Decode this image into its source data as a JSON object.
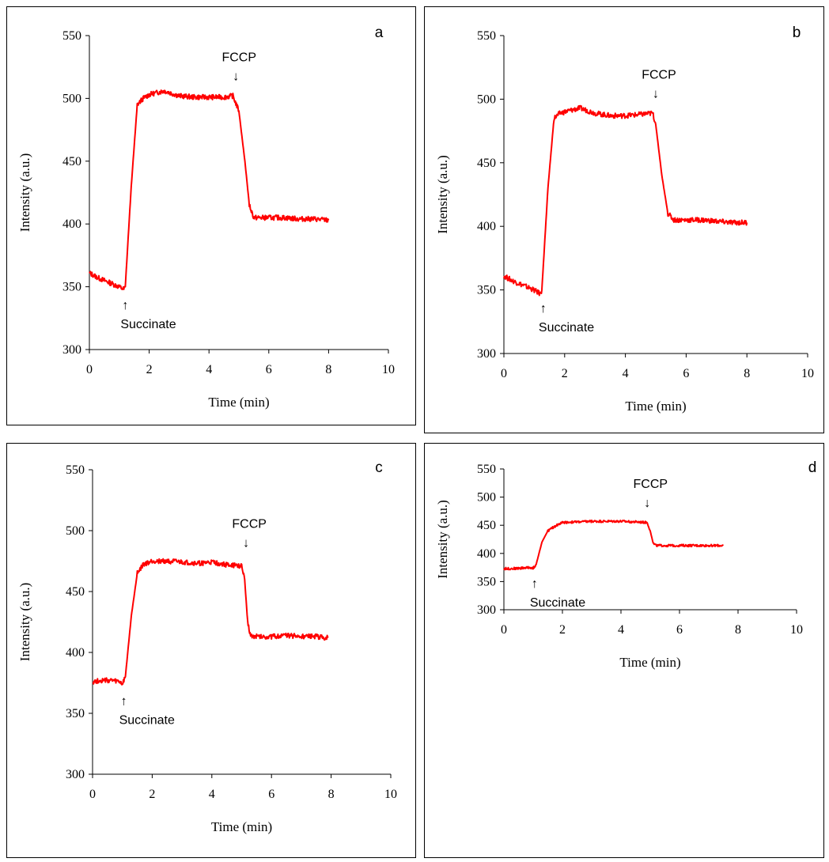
{
  "chart_data": [
    {
      "type": "line",
      "panel_label": "a",
      "xlabel": "Time (min)",
      "ylabel": "Intensity (a.u.)",
      "xlim": [
        0,
        10
      ],
      "ylim": [
        300,
        550
      ],
      "xticks": [
        0,
        2,
        4,
        6,
        8,
        10
      ],
      "yticks": [
        300,
        350,
        400,
        450,
        500,
        550
      ],
      "series_color": "#ff0000",
      "grid": false,
      "series": [
        {
          "x": [
            0,
            0.3,
            0.6,
            0.9,
            1.15,
            1.2,
            1.4,
            1.6,
            1.8,
            2.0,
            2.5,
            3.0,
            3.5,
            4.0,
            4.5,
            4.8,
            5.0,
            5.2,
            5.35,
            5.5,
            6.0,
            6.5,
            7.0,
            7.5,
            8.0
          ],
          "y": [
            361,
            357,
            354,
            351,
            348,
            350,
            430,
            495,
            500,
            503,
            506,
            502,
            501,
            501,
            501,
            502,
            490,
            450,
            415,
            405,
            405,
            405,
            404,
            404,
            403
          ]
        }
      ],
      "annotations": [
        {
          "text": "Succinate",
          "arrow": "↑",
          "x": 1.2,
          "y": 346,
          "direction": "up"
        },
        {
          "text": "FCCP",
          "arrow": "↓",
          "x": 4.9,
          "y": 503,
          "direction": "down"
        }
      ]
    },
    {
      "type": "line",
      "panel_label": "b",
      "xlabel": "Time (min)",
      "ylabel": "Intensity (a.u.)",
      "xlim": [
        0,
        10
      ],
      "ylim": [
        300,
        550
      ],
      "xticks": [
        0,
        2,
        4,
        6,
        8,
        10
      ],
      "yticks": [
        300,
        350,
        400,
        450,
        500,
        550
      ],
      "series_color": "#ff0000",
      "grid": false,
      "series": [
        {
          "x": [
            0,
            0.3,
            0.6,
            0.9,
            1.2,
            1.25,
            1.45,
            1.65,
            1.85,
            2.0,
            2.5,
            3.0,
            3.5,
            4.0,
            4.5,
            4.9,
            5.0,
            5.2,
            5.4,
            5.6,
            6.0,
            6.5,
            7.0,
            7.5,
            8.0
          ],
          "y": [
            361,
            357,
            354,
            351,
            347,
            350,
            430,
            485,
            489,
            490,
            493,
            489,
            487,
            487,
            488,
            489,
            480,
            440,
            410,
            405,
            405,
            405,
            404,
            403,
            403
          ]
        }
      ],
      "annotations": [
        {
          "text": "Succinate",
          "arrow": "↑",
          "x": 1.3,
          "y": 346,
          "direction": "up"
        },
        {
          "text": "FCCP",
          "arrow": "↓",
          "x": 5.0,
          "y": 490,
          "direction": "down"
        }
      ]
    },
    {
      "type": "line",
      "panel_label": "c",
      "xlabel": "Time (min)",
      "ylabel": "Intensity (a.u.)",
      "xlim": [
        0,
        10
      ],
      "ylim": [
        300,
        550
      ],
      "xticks": [
        0,
        2,
        4,
        6,
        8,
        10
      ],
      "yticks": [
        300,
        350,
        400,
        450,
        500,
        550
      ],
      "series_color": "#ff0000",
      "grid": false,
      "series": [
        {
          "x": [
            0,
            0.3,
            0.6,
            0.9,
            1.0,
            1.1,
            1.3,
            1.5,
            1.7,
            2.0,
            2.5,
            3.0,
            3.5,
            4.0,
            4.5,
            5.0,
            5.1,
            5.2,
            5.3,
            5.5,
            6.0,
            6.5,
            7.0,
            7.5,
            7.9
          ],
          "y": [
            376,
            377,
            377,
            376,
            374,
            380,
            430,
            465,
            472,
            475,
            475,
            474,
            473,
            474,
            472,
            471,
            460,
            425,
            414,
            413,
            413,
            414,
            413,
            413,
            412
          ]
        }
      ],
      "annotations": [
        {
          "text": "Succinate",
          "arrow": "↑",
          "x": 1.05,
          "y": 371,
          "direction": "up"
        },
        {
          "text": "FCCP",
          "arrow": "↓",
          "x": 5.15,
          "y": 475,
          "direction": "down"
        }
      ]
    },
    {
      "type": "line",
      "panel_label": "d",
      "xlabel": "Time (min)",
      "ylabel": "Intensity (a.u.)",
      "xlim": [
        0,
        10
      ],
      "ylim": [
        300,
        550
      ],
      "xticks": [
        0,
        2,
        4,
        6,
        8,
        10
      ],
      "yticks": [
        300,
        350,
        400,
        450,
        500,
        550
      ],
      "series_color": "#ff0000",
      "grid": false,
      "series": [
        {
          "x": [
            0,
            0.3,
            0.6,
            0.9,
            1.0,
            1.1,
            1.3,
            1.5,
            1.8,
            2.0,
            2.5,
            3.0,
            3.5,
            4.0,
            4.5,
            4.9,
            5.0,
            5.1,
            5.2,
            5.5,
            6.0,
            6.5,
            7.0,
            7.5
          ],
          "y": [
            373,
            373,
            374,
            375,
            374,
            380,
            420,
            440,
            450,
            455,
            456,
            457,
            457,
            457,
            456,
            455,
            440,
            418,
            414,
            414,
            414,
            414,
            414,
            414
          ]
        }
      ],
      "annotations": [
        {
          "text": "Succinate",
          "arrow": "↑",
          "x": 1.05,
          "y": 370,
          "direction": "up"
        },
        {
          "text": "FCCP",
          "arrow": "↓",
          "x": 4.9,
          "y": 457,
          "direction": "down"
        }
      ]
    }
  ]
}
